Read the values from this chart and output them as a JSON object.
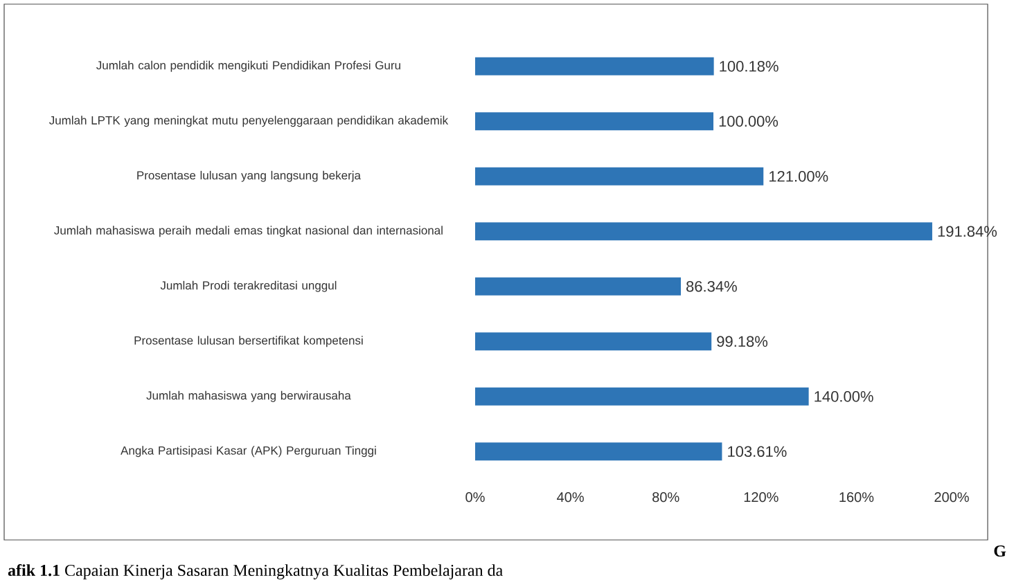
{
  "chart_data": {
    "type": "bar",
    "orientation": "horizontal",
    "categories": [
      "Jumlah calon pendidik mengikuti Pendidikan Profesi Guru",
      "Jumlah LPTK yang meningkat mutu penyelenggaraan pendidikan akademik",
      "Prosentase lulusan yang langsung bekerja",
      "Jumlah mahasiswa peraih medali emas tingkat nasional dan internasional",
      "Jumlah Prodi terakreditasi unggul",
      "Prosentase lulusan bersertifikat kompetensi",
      "Jumlah mahasiswa yang berwirausaha",
      "Angka Partisipasi Kasar (APK) Perguruan Tinggi"
    ],
    "values": [
      100.18,
      100.0,
      121.0,
      191.84,
      86.34,
      99.18,
      140.0,
      103.61
    ],
    "value_labels": [
      "100.18%",
      "100.00%",
      "121.00%",
      "191.84%",
      "86.34%",
      "99.18%",
      "140.00%",
      "103.61%"
    ],
    "color": "#2e75b6",
    "xlim": [
      0,
      200
    ],
    "xticks": [
      {
        "value": 0,
        "label": "0%"
      },
      {
        "value": 40,
        "label": "40%"
      },
      {
        "value": 80,
        "label": "80%"
      },
      {
        "value": 120,
        "label": "120%"
      },
      {
        "value": 160,
        "label": "160%"
      },
      {
        "value": 200,
        "label": "200%"
      }
    ],
    "annotations": [
      "G",
      "**afik 1.1** Capaian Kinerja Sasaran Meningkatnya Kualitas Pembelajaran da"
    ]
  }
}
